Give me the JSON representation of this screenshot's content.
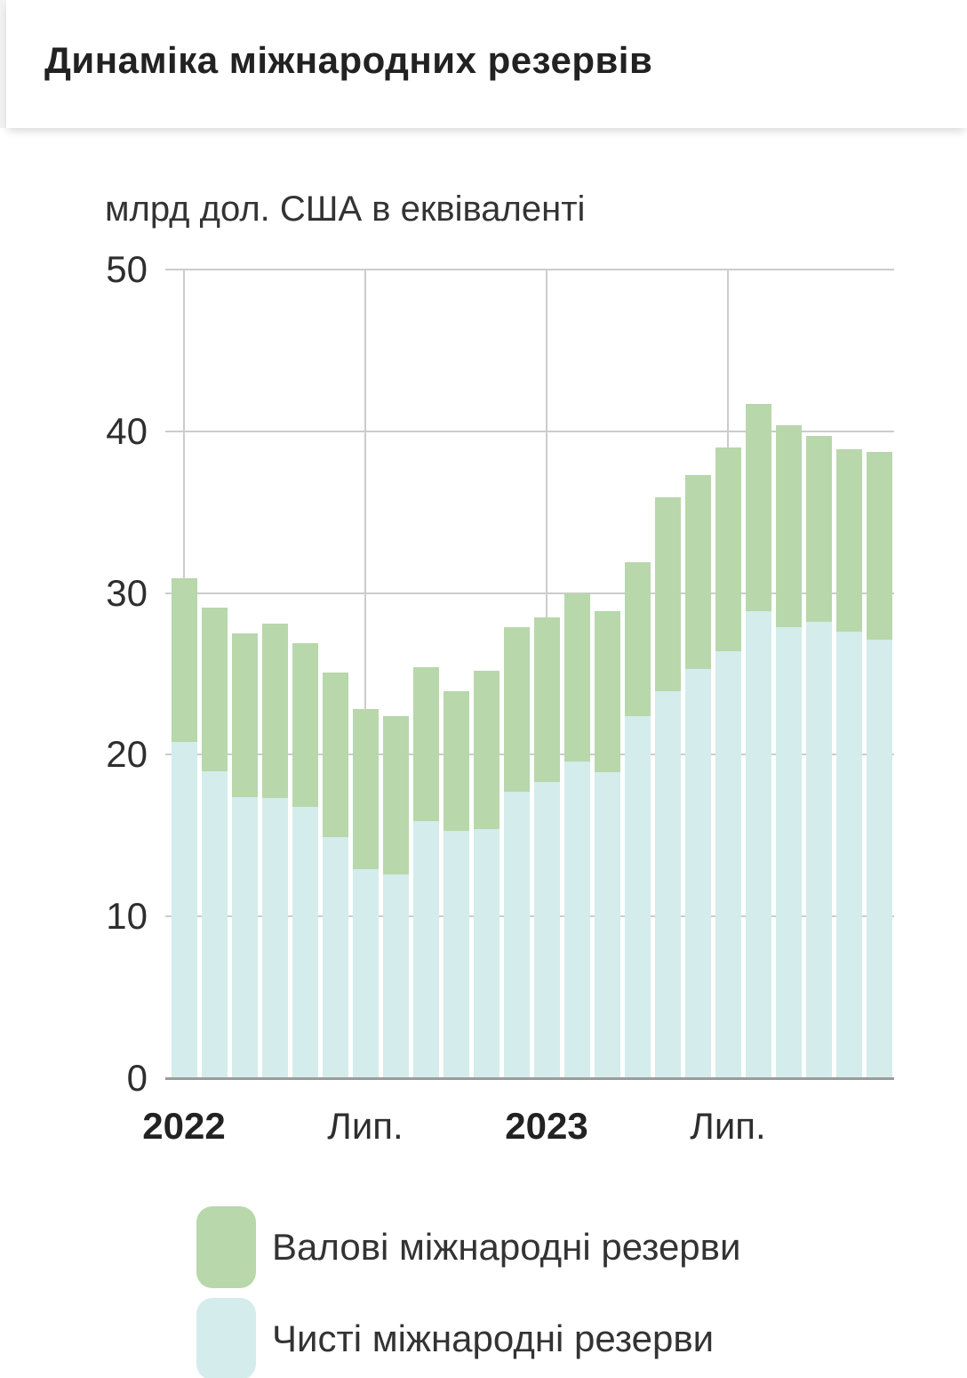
{
  "header": {
    "title": "Динаміка міжнародних резервів"
  },
  "chart": {
    "unit_label": "млрд дол. США в еквіваленті"
  },
  "chart_data": {
    "type": "bar",
    "title": "Динаміка міжнародних резервів",
    "ylabel": "млрд дол. США в еквіваленті",
    "ylim": [
      0,
      50
    ],
    "y_ticks": [
      0,
      10,
      20,
      30,
      40,
      50
    ],
    "grid": true,
    "legend_position": "bottom",
    "note": "Monthly bars; green bar top = gross reserves, inner light-blue bar = net reserves",
    "categories": [
      "2022-01",
      "2022-02",
      "2022-03",
      "2022-04",
      "2022-05",
      "2022-06",
      "2022-07",
      "2022-08",
      "2022-09",
      "2022-10",
      "2022-11",
      "2022-12",
      "2023-01",
      "2023-02",
      "2023-03",
      "2023-04",
      "2023-05",
      "2023-06",
      "2023-07",
      "2023-08",
      "2023-09",
      "2023-10",
      "2023-11",
      "2023-12"
    ],
    "x_axis_visible_labels": [
      {
        "label": "2022",
        "index": 0,
        "bold": true
      },
      {
        "label": "Лип.",
        "index": 6,
        "bold": false
      },
      {
        "label": "2023",
        "index": 12,
        "bold": true
      },
      {
        "label": "Лип.",
        "index": 18,
        "bold": false
      }
    ],
    "series": [
      {
        "name": "Валові міжнародні резерви",
        "key": "gross",
        "color": "#b8d7ab",
        "values": [
          30.9,
          29.1,
          27.5,
          28.1,
          26.9,
          25.1,
          22.8,
          22.4,
          25.4,
          23.9,
          25.2,
          27.9,
          28.5,
          30.0,
          28.9,
          31.9,
          35.9,
          37.3,
          39.0,
          41.7,
          40.4,
          39.7,
          38.9,
          38.7
        ]
      },
      {
        "name": "Чисті міжнародні резерви",
        "key": "net",
        "color": "#d4ecec",
        "values": [
          20.8,
          19.0,
          17.4,
          17.3,
          16.8,
          14.9,
          12.9,
          12.6,
          15.9,
          15.3,
          15.4,
          17.7,
          18.3,
          19.6,
          18.9,
          22.4,
          23.9,
          25.3,
          26.4,
          28.9,
          27.9,
          28.2,
          27.6,
          27.1
        ]
      }
    ],
    "colors": {
      "grid": "#cccccc",
      "axis": "#9b9b9b",
      "text": "#2e2e2e"
    }
  }
}
